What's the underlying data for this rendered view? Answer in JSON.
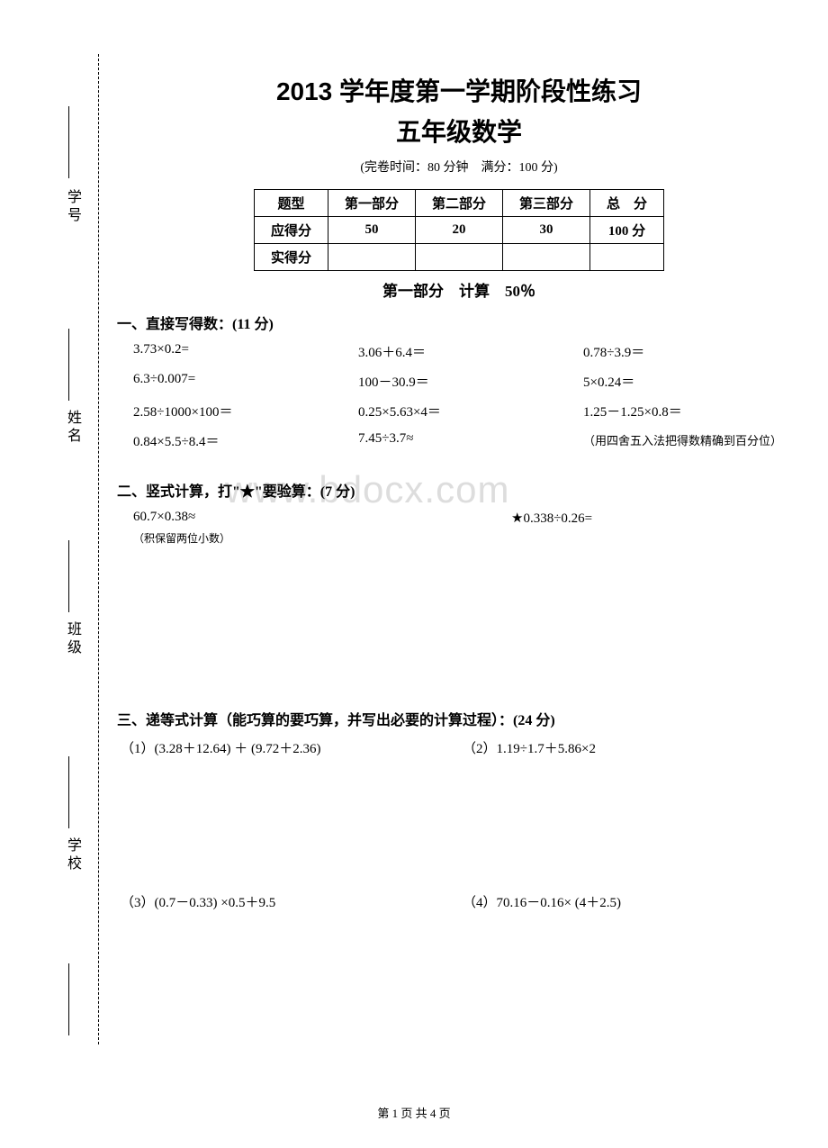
{
  "sidebar": {
    "labels": [
      "学号",
      "姓名",
      "班级",
      "学校"
    ]
  },
  "header": {
    "title": "2013 学年度第一学期阶段性练习",
    "subtitle": "五年级数学",
    "exam_info": "(完卷时间：80 分钟　满分：100 分)"
  },
  "score_table": {
    "headers": [
      "题型",
      "第一部分",
      "第二部分",
      "第三部分",
      "总　分"
    ],
    "rows": [
      {
        "label": "应得分",
        "values": [
          "50",
          "20",
          "30",
          "100 分"
        ]
      },
      {
        "label": "实得分",
        "values": [
          "",
          "",
          "",
          ""
        ]
      }
    ]
  },
  "part1": {
    "title": "第一部分　计算　50％",
    "section1": {
      "header": "一、直接写得数：(11 分)",
      "rows": [
        [
          "3.73×0.2=",
          "3.06＋6.4＝",
          "0.78÷3.9＝"
        ],
        [
          "6.3÷0.007=",
          "100－30.9＝",
          "5×0.24＝"
        ],
        [
          "2.58÷1000×100＝",
          "0.25×5.63×4＝",
          "1.25－1.25×0.8＝"
        ],
        [
          "0.84×5.5÷8.4＝",
          "7.45÷3.7≈",
          "（用四舍五入法把得数精确到百分位）"
        ]
      ]
    },
    "section2": {
      "header": "二、竖式计算，打\"★\"要验算：(7 分)",
      "problems": [
        "60.7×0.38≈",
        "★0.338÷0.26="
      ],
      "note": "（积保留两位小数）"
    },
    "section3": {
      "header": "三、递等式计算（能巧算的要巧算，并写出必要的计算过程）：(24 分)",
      "rows": [
        [
          "（1）(3.28＋12.64) ＋ (9.72＋2.36)",
          "（2）1.19÷1.7＋5.86×2"
        ],
        [
          "（3）(0.7－0.33) ×0.5＋9.5",
          "（4）70.16－0.16× (4＋2.5)"
        ]
      ]
    }
  },
  "watermark": "www.bdocx.com",
  "footer": "第 1 页 共 4 页"
}
